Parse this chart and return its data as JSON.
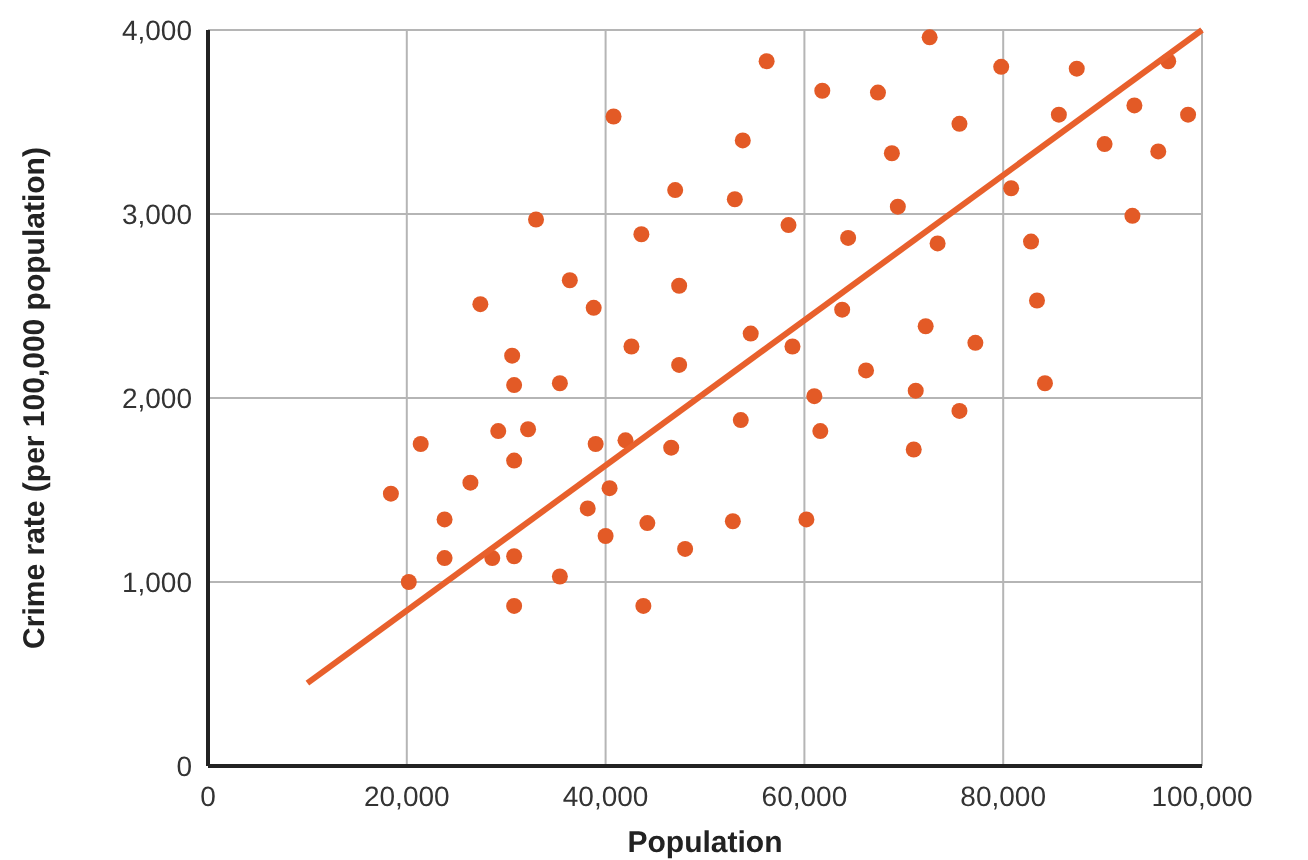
{
  "chart_data": {
    "type": "scatter",
    "xlabel": "Population",
    "ylabel": "Crime rate (per 100,000 population)",
    "xlim": [
      0,
      100000
    ],
    "ylim": [
      0,
      4000
    ],
    "xticks": [
      {
        "value": 0,
        "label": "0"
      },
      {
        "value": 20000,
        "label": "20,000"
      },
      {
        "value": 40000,
        "label": "40,000"
      },
      {
        "value": 60000,
        "label": "60,000"
      },
      {
        "value": 80000,
        "label": "80,000"
      },
      {
        "value": 100000,
        "label": "100,000"
      }
    ],
    "yticks": [
      {
        "value": 0,
        "label": "0"
      },
      {
        "value": 1000,
        "label": "1,000"
      },
      {
        "value": 2000,
        "label": "2,000"
      },
      {
        "value": 3000,
        "label": "3,000"
      },
      {
        "value": 4000,
        "label": "4,000"
      }
    ],
    "grid": true,
    "marker": "circle",
    "series": [
      {
        "color": "#e35a26",
        "x": [
          18400,
          20200,
          21400,
          23800,
          23800,
          26400,
          27400,
          28600,
          29200,
          30600,
          30800,
          30800,
          30800,
          30800,
          32200,
          33000,
          35400,
          35400,
          36400,
          38800,
          38200,
          39000,
          40000,
          40400,
          40800,
          42000,
          42600,
          43600,
          43800,
          44200,
          46600,
          47000,
          47400,
          47400,
          48000,
          53000,
          52800,
          53600,
          53800,
          54600,
          56200,
          58400,
          58800,
          60200,
          61000,
          61600,
          61800,
          63800,
          64400,
          66200,
          67400,
          68800,
          69400,
          71000,
          71200,
          72200,
          72600,
          73400,
          75600,
          75600,
          77200,
          79800,
          80800,
          82800,
          83400,
          84200,
          85600,
          87400,
          90200,
          93000,
          93200,
          95600,
          96600,
          98600
        ],
        "values": [
          1480,
          1000,
          1750,
          1340,
          1130,
          1540,
          2510,
          1130,
          1820,
          2230,
          2070,
          1660,
          1140,
          870,
          1830,
          2970,
          2080,
          1030,
          2640,
          2490,
          1400,
          1750,
          1250,
          1510,
          3530,
          1770,
          2280,
          2890,
          870,
          1320,
          1730,
          3130,
          2610,
          2180,
          1180,
          3080,
          1330,
          1880,
          3400,
          2350,
          3830,
          2940,
          2280,
          1340,
          2010,
          1820,
          3670,
          2480,
          2870,
          2150,
          3660,
          3330,
          3040,
          1720,
          2040,
          2390,
          3960,
          2840,
          3490,
          1930,
          2300,
          3800,
          3140,
          2850,
          2530,
          2080,
          3540,
          3790,
          3380,
          2990,
          3590,
          3340,
          3830,
          3540
        ]
      },
      {
        "type": "line",
        "color": "#e8602c",
        "marker": "none",
        "x": [
          10000,
          100000
        ],
        "values": [
          450,
          4000
        ]
      }
    ]
  }
}
